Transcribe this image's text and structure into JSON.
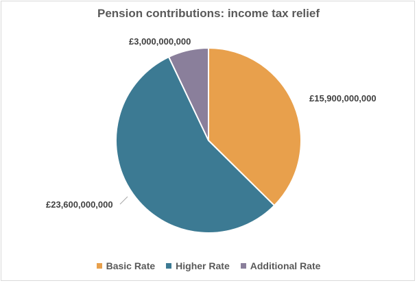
{
  "chart_data": {
    "type": "pie",
    "title": "Pension contributions: income tax relief",
    "categories": [
      "Basic Rate",
      "Higher Rate",
      "Additional Rate"
    ],
    "values": [
      15900000000,
      23600000000,
      3000000000
    ],
    "data_labels": [
      "£15,900,000,000",
      "£23,600,000,000",
      "£3,000,000,000"
    ],
    "colors": [
      "#e8a04c",
      "#3c7a93",
      "#8a7f9b"
    ],
    "legend_position": "bottom",
    "start_angle_deg": 0,
    "direction": "clockwise"
  }
}
